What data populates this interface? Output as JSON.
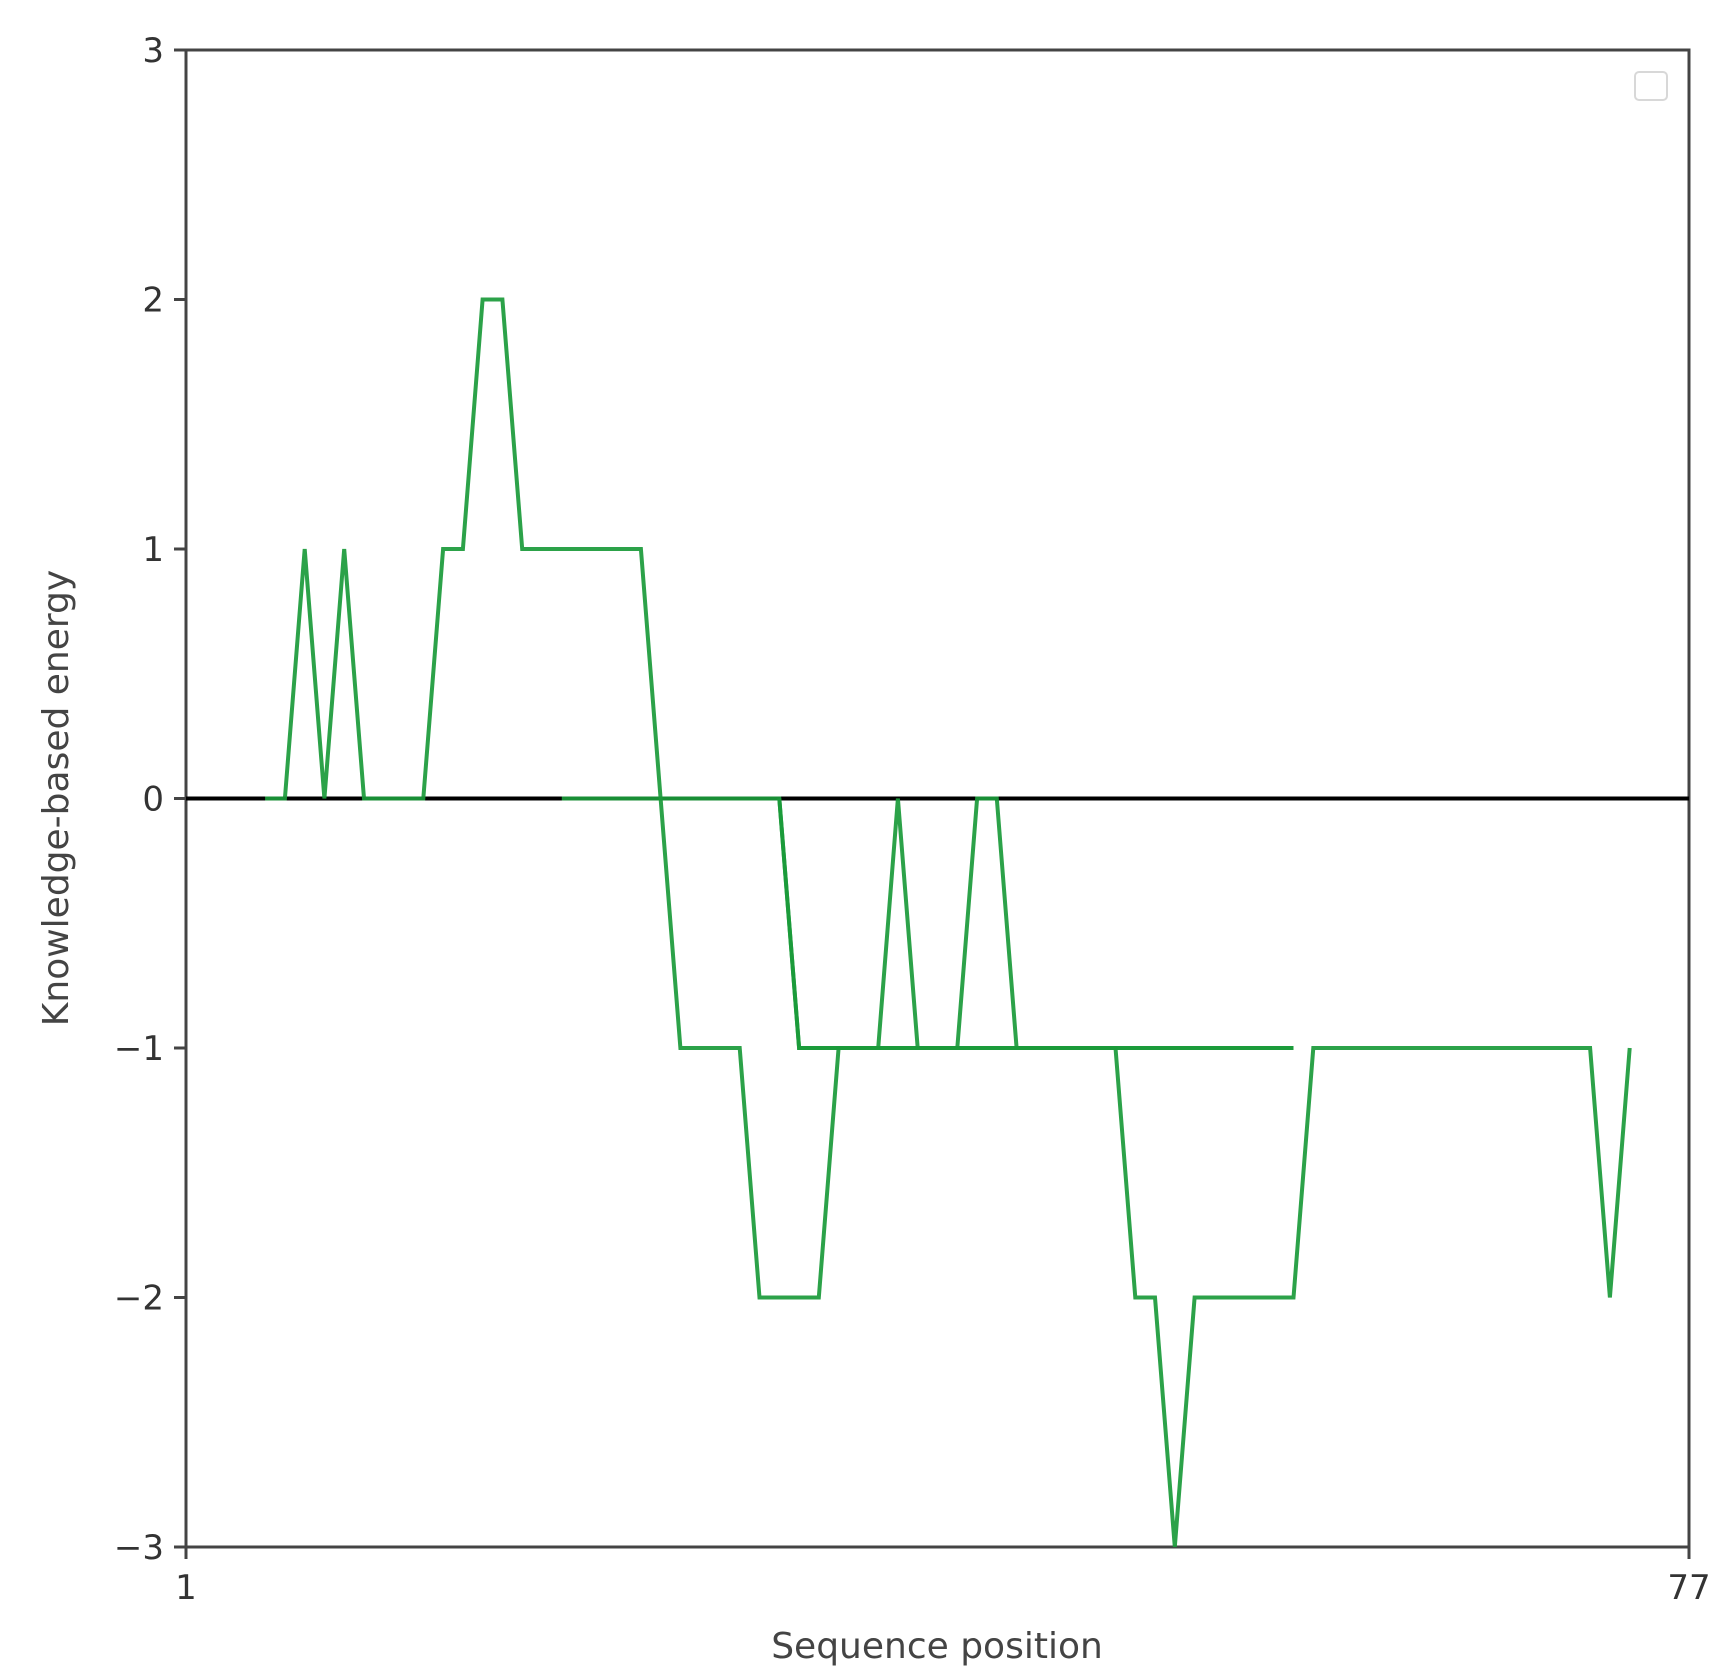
{
  "chart_data": {
    "type": "line",
    "title": "",
    "xlabel": "Sequence position",
    "ylabel": "Knowledge-based energy",
    "xlim": [
      1,
      77
    ],
    "ylim": [
      -3,
      3
    ],
    "x_tick_labels": [
      "1",
      "77"
    ],
    "x_tick_values": [
      1,
      77
    ],
    "y_ticks": [
      -3,
      -2,
      -1,
      0,
      1,
      2,
      3
    ],
    "y_tick_labels": [
      "−3",
      "−2",
      "−1",
      "0",
      "1",
      "2",
      "3"
    ],
    "grid": false,
    "legend": {
      "placement": "top-right",
      "entries": []
    },
    "reference_line": {
      "y": 0,
      "color": "#000000"
    },
    "series_color": "#1a9a3a",
    "series": [
      {
        "x": [
          5,
          6,
          7,
          8,
          9,
          10,
          11,
          12,
          13,
          14,
          15,
          16,
          17,
          18,
          19,
          20,
          21,
          22,
          23,
          24,
          25,
          26,
          27,
          28,
          29,
          30,
          31,
          32,
          33,
          34,
          35,
          36,
          37,
          38,
          39,
          40,
          41,
          42,
          43,
          44,
          45,
          46,
          47,
          48,
          49,
          50,
          51,
          52,
          53,
          54,
          55,
          56,
          57,
          58,
          59,
          60,
          61,
          62,
          63,
          64,
          65,
          66,
          67,
          68,
          69,
          70,
          71,
          72,
          73,
          74
        ],
        "y": [
          0,
          0,
          1,
          0,
          1,
          0,
          0,
          0,
          0,
          1,
          1,
          2,
          2,
          1,
          1,
          1,
          1,
          1,
          1,
          1,
          0,
          -1,
          -1,
          -1,
          -1,
          -2,
          -2,
          -2,
          -2,
          -1,
          -1,
          -1,
          -1,
          -1,
          -1,
          -1,
          -1,
          -1,
          -1,
          -1,
          -1,
          -1,
          -1,
          -1,
          -2,
          -2,
          -3,
          -2,
          -2,
          -2,
          -2,
          -2,
          -2,
          -1,
          -1,
          -1,
          -1,
          -1,
          -1,
          -1,
          -1,
          -1,
          -1,
          -1,
          -1,
          -1,
          -1,
          -1,
          -2,
          -1
        ]
      },
      {
        "x": [
          20,
          21,
          22,
          23,
          24,
          25,
          26,
          27,
          28,
          29,
          30,
          31,
          32,
          33,
          34,
          35,
          36,
          37,
          38,
          39,
          40,
          41,
          42,
          43,
          44,
          45,
          46,
          47,
          48,
          49,
          50,
          51,
          52,
          53,
          54,
          55,
          56,
          57
        ],
        "y": [
          0,
          0,
          0,
          0,
          0,
          0,
          0,
          0,
          0,
          0,
          0,
          0,
          -1,
          -1,
          -1,
          -1,
          -1,
          -1,
          -1,
          -1,
          -1,
          -1,
          -1,
          -1,
          -1,
          -1,
          -1,
          -1,
          -1,
          -1,
          -1,
          -1,
          -1,
          -1,
          -1,
          -1,
          -1,
          -1
        ]
      },
      {
        "x": [
          31,
          32,
          33,
          34,
          35,
          36,
          37,
          38,
          39,
          40,
          41,
          42,
          43,
          44,
          45,
          46,
          47,
          48,
          49,
          50,
          51,
          52,
          53,
          54,
          55,
          56,
          57
        ],
        "y": [
          0,
          -1,
          -1,
          -1,
          -1,
          -1,
          0,
          -1,
          -1,
          -1,
          0,
          0,
          -1,
          -1,
          -1,
          -1,
          -1,
          -1,
          -1,
          -1,
          -1,
          -1,
          -1,
          -1,
          -1,
          -1,
          -1
        ]
      }
    ]
  }
}
